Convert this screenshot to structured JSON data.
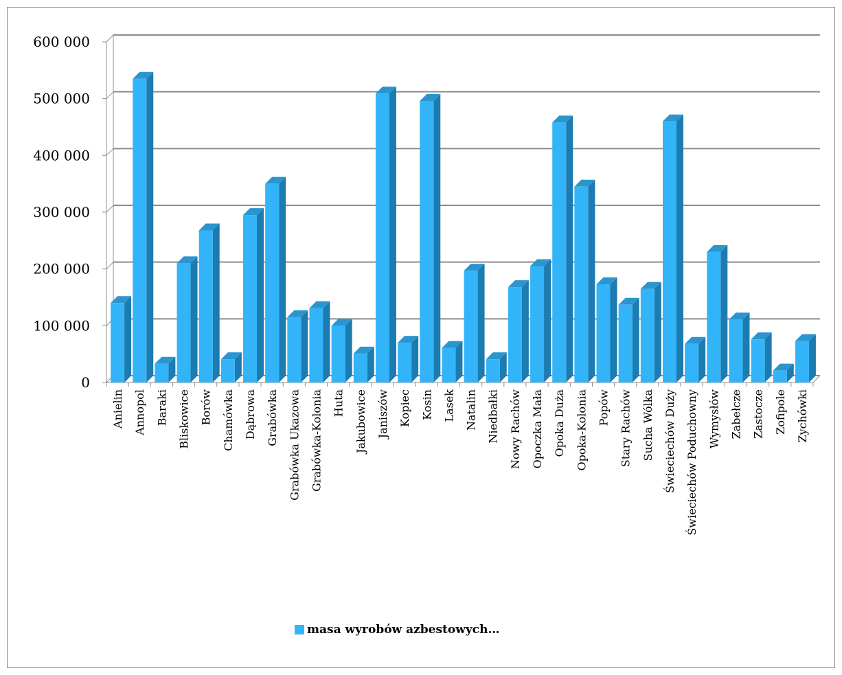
{
  "chart_data": {
    "type": "bar",
    "style": "3d-column",
    "title": "",
    "xlabel": "",
    "ylabel": "",
    "ylim": [
      0,
      600000
    ],
    "yticks": [
      0,
      100000,
      200000,
      300000,
      400000,
      500000,
      600000
    ],
    "ytick_labels": [
      "0",
      "100 000",
      "200 000",
      "300 000",
      "400 000",
      "500 000",
      "600 000"
    ],
    "grid": true,
    "legend_position": "bottom",
    "bar_color": "#33b4f8",
    "categories": [
      "Anielin",
      "Annopol",
      "Baraki",
      "Bliskowice",
      "Borów",
      "Chamówka",
      "Dąbrowa",
      "Grabówka",
      "Grabówka Ukazowa",
      "Grabówka-Kolonia",
      "Huta",
      "Jakubowice",
      "Janiszów",
      "Kopiec",
      "Kosin",
      "Lasek",
      "Natalin",
      "Niedbałki",
      "Nowy Rachów",
      "Opoczka Mała",
      "Opoka Duża",
      "Opoka-Kolonia",
      "Popów",
      "Stary Rachów",
      "Sucha Wólka",
      "Świeciechów Duży",
      "Świeciechów Poduchowny",
      "Wymysłów",
      "Zabełcze",
      "Zastocze",
      "Zofipole",
      "Zychówki"
    ],
    "series": [
      {
        "name": "masa wyrobów azbestowych…",
        "values": [
          140000,
          535000,
          33000,
          210000,
          268000,
          41000,
          295000,
          350000,
          115000,
          131000,
          100000,
          51000,
          509000,
          70000,
          496000,
          61000,
          197000,
          41000,
          168000,
          205000,
          458000,
          345000,
          173000,
          137000,
          165000,
          460000,
          68000,
          230000,
          111000,
          76000,
          21000,
          73000
        ]
      }
    ]
  }
}
